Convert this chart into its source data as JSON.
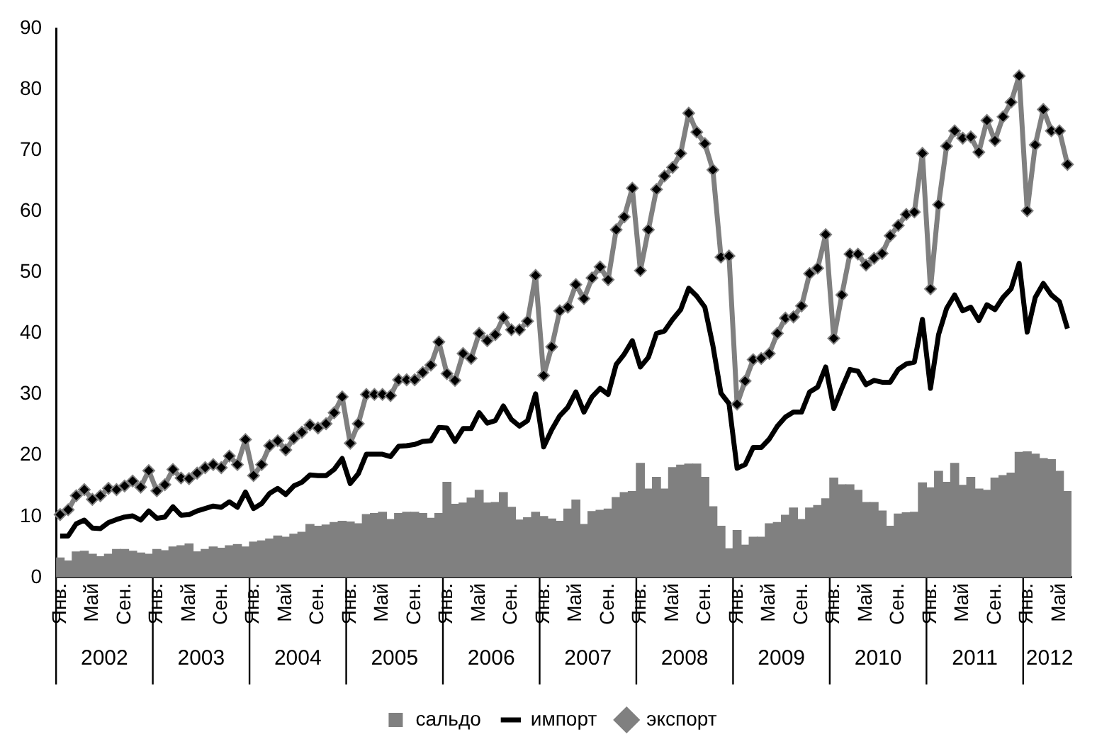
{
  "chart_data": {
    "type": "bar",
    "categories": [
      "Янв.",
      null,
      null,
      null,
      "Май",
      null,
      null,
      null,
      "Сен.",
      null,
      null,
      null,
      "Янв.",
      null,
      null,
      null,
      "Май",
      null,
      null,
      null,
      "Сен.",
      null,
      null,
      null,
      "Янв.",
      null,
      null,
      null,
      "Май",
      null,
      null,
      null,
      "Сен.",
      null,
      null,
      null,
      "Янв.",
      null,
      null,
      null,
      "Май",
      null,
      null,
      null,
      "Сен.",
      null,
      null,
      null,
      "Янв.",
      null,
      null,
      null,
      "Май",
      null,
      null,
      null,
      "Сен.",
      null,
      null,
      null,
      "Янв.",
      null,
      null,
      null,
      "Май",
      null,
      null,
      null,
      "Сен.",
      null,
      null,
      null,
      "Янв.",
      null,
      null,
      null,
      "Май",
      null,
      null,
      null,
      "Сен.",
      null,
      null,
      null,
      "Янв.",
      null,
      null,
      null,
      "Май",
      null,
      null,
      null,
      "Сен.",
      null,
      null,
      null,
      "Янв.",
      null,
      null,
      null,
      "Май",
      null,
      null,
      null,
      "Сен.",
      null,
      null,
      null,
      "Янв.",
      null,
      null,
      null,
      "Май",
      null,
      null,
      null,
      "Сен.",
      null,
      null,
      null,
      "Янв.",
      null,
      null,
      null,
      "Май",
      null
    ],
    "annotations": [
      "2002",
      "2003",
      "2004",
      "2005",
      "2006",
      "2007",
      "2008",
      "2009",
      "2010",
      "2011",
      "2012"
    ],
    "series": [
      {
        "name": "сальдо",
        "color": "#808080",
        "values": [
          3.2,
          2.7,
          4.2,
          4.3,
          3.8,
          3.4,
          3.8,
          4.6,
          4.6,
          4.3,
          4.0,
          3.8,
          4.6,
          4.4,
          5.0,
          5.2,
          5.5,
          4.2,
          4.6,
          5.0,
          4.8,
          5.2,
          5.4,
          5.0,
          5.8,
          6.0,
          6.3,
          6.8,
          6.6,
          7.1,
          7.4,
          8.7,
          8.4,
          8.6,
          9.0,
          9.2,
          9.1,
          8.8,
          10.3,
          10.5,
          10.7,
          9.5,
          10.5,
          10.7,
          10.7,
          10.5,
          9.7,
          10.5,
          15.6,
          12.0,
          12.2,
          13.0,
          14.3,
          12.2,
          12.3,
          13.9,
          11.5,
          9.4,
          9.8,
          10.7,
          10.0,
          9.6,
          9.2,
          11.2,
          12.7,
          8.7,
          10.8,
          11.0,
          11.2,
          13.1,
          13.9,
          14.1,
          18.7,
          14.5,
          16.4,
          14.5,
          18.0,
          18.4,
          18.6,
          18.6,
          16.4,
          11.6,
          8.4,
          4.7,
          7.7,
          5.3,
          6.6,
          6.6,
          8.8,
          9.0,
          10.2,
          11.4,
          9.5,
          11.4,
          11.8,
          12.9,
          16.3,
          15.2,
          15.2,
          14.3,
          12.3,
          12.3,
          10.9,
          8.4,
          10.4,
          10.6,
          10.7,
          15.5,
          14.7,
          17.4,
          15.6,
          18.7,
          15.1,
          16.4,
          14.5,
          14.3,
          16.3,
          16.7,
          17.1,
          20.5,
          20.6,
          20.2,
          19.5,
          19.3,
          17.4,
          14.1
        ]
      },
      {
        "name": "импорт",
        "type": "line",
        "color": "#000000",
        "values": [
          6.8,
          6.8,
          8.8,
          9.4,
          8.1,
          8.0,
          9.0,
          9.5,
          9.9,
          10.1,
          9.4,
          10.9,
          9.7,
          9.9,
          11.6,
          10.2,
          10.3,
          10.9,
          11.3,
          11.7,
          11.5,
          12.4,
          11.5,
          14.0,
          11.3,
          12.1,
          13.8,
          14.6,
          13.6,
          15.0,
          15.6,
          16.8,
          16.7,
          16.7,
          17.7,
          19.5,
          15.4,
          17.0,
          20.2,
          20.2,
          20.2,
          19.8,
          21.5,
          21.6,
          21.8,
          22.3,
          22.4,
          24.6,
          24.5,
          22.3,
          24.4,
          24.4,
          27.0,
          25.3,
          25.7,
          28.1,
          25.9,
          24.8,
          25.7,
          30.1,
          21.4,
          24.2,
          26.5,
          27.9,
          30.4,
          27.1,
          29.6,
          31.0,
          30.0,
          34.9,
          36.6,
          38.8,
          34.5,
          36.1,
          40.0,
          40.4,
          42.3,
          43.9,
          47.4,
          46.1,
          44.3,
          38.0,
          30.2,
          28.5,
          17.9,
          18.5,
          21.3,
          21.3,
          22.7,
          24.8,
          26.3,
          27.1,
          27.1,
          30.4,
          31.2,
          34.5,
          27.7,
          31.0,
          34.1,
          33.8,
          31.6,
          32.3,
          32.0,
          32.0,
          34.1,
          35.0,
          35.3,
          42.3,
          31.0,
          39.8,
          44.1,
          46.3,
          43.7,
          44.3,
          42.1,
          44.7,
          43.9,
          45.9,
          47.3,
          51.5,
          40.2,
          45.9,
          48.2,
          46.3,
          45.2,
          40.8
        ]
      },
      {
        "name": "экспорт",
        "type": "line",
        "marker": "diamond",
        "color": "#808080",
        "values": [
          10.3,
          11.1,
          13.4,
          14.4,
          12.8,
          13.4,
          14.6,
          14.4,
          15.0,
          15.8,
          14.8,
          17.5,
          14.2,
          15.2,
          17.7,
          16.3,
          16.2,
          17.1,
          18.0,
          18.5,
          18.0,
          19.9,
          18.5,
          22.6,
          16.7,
          18.5,
          21.6,
          22.4,
          20.9,
          22.8,
          23.8,
          25.0,
          24.5,
          25.2,
          27.0,
          29.6,
          22.0,
          25.2,
          30.0,
          30.0,
          30.0,
          29.8,
          32.4,
          32.4,
          32.4,
          33.6,
          34.8,
          38.6,
          33.4,
          32.3,
          36.7,
          35.9,
          40.0,
          38.8,
          39.8,
          42.6,
          40.6,
          40.6,
          42.0,
          49.5,
          33.1,
          37.8,
          43.7,
          44.3,
          48.0,
          45.7,
          49.1,
          50.9,
          48.8,
          57.0,
          59.1,
          63.8,
          50.3,
          57.0,
          63.6,
          65.8,
          67.2,
          69.5,
          76.1,
          73.0,
          71.1,
          66.8,
          52.5,
          52.7,
          28.4,
          32.2,
          35.7,
          35.9,
          36.7,
          40.0,
          42.5,
          42.7,
          44.5,
          49.8,
          50.7,
          56.2,
          39.2,
          46.3,
          53.0,
          53.0,
          51.2,
          52.3,
          53.1,
          56.0,
          57.7,
          59.5,
          59.9,
          69.5,
          47.3,
          61.1,
          70.7,
          73.2,
          72.0,
          72.2,
          69.7,
          74.9,
          71.6,
          75.5,
          77.9,
          82.2,
          60.1,
          70.9,
          76.7,
          73.2,
          73.2,
          67.7
        ]
      }
    ],
    "ylim": [
      0,
      90
    ],
    "yticks": [
      0,
      10,
      20,
      30,
      40,
      50,
      60,
      70,
      80,
      90
    ],
    "grid": false,
    "legend": "bottom"
  }
}
